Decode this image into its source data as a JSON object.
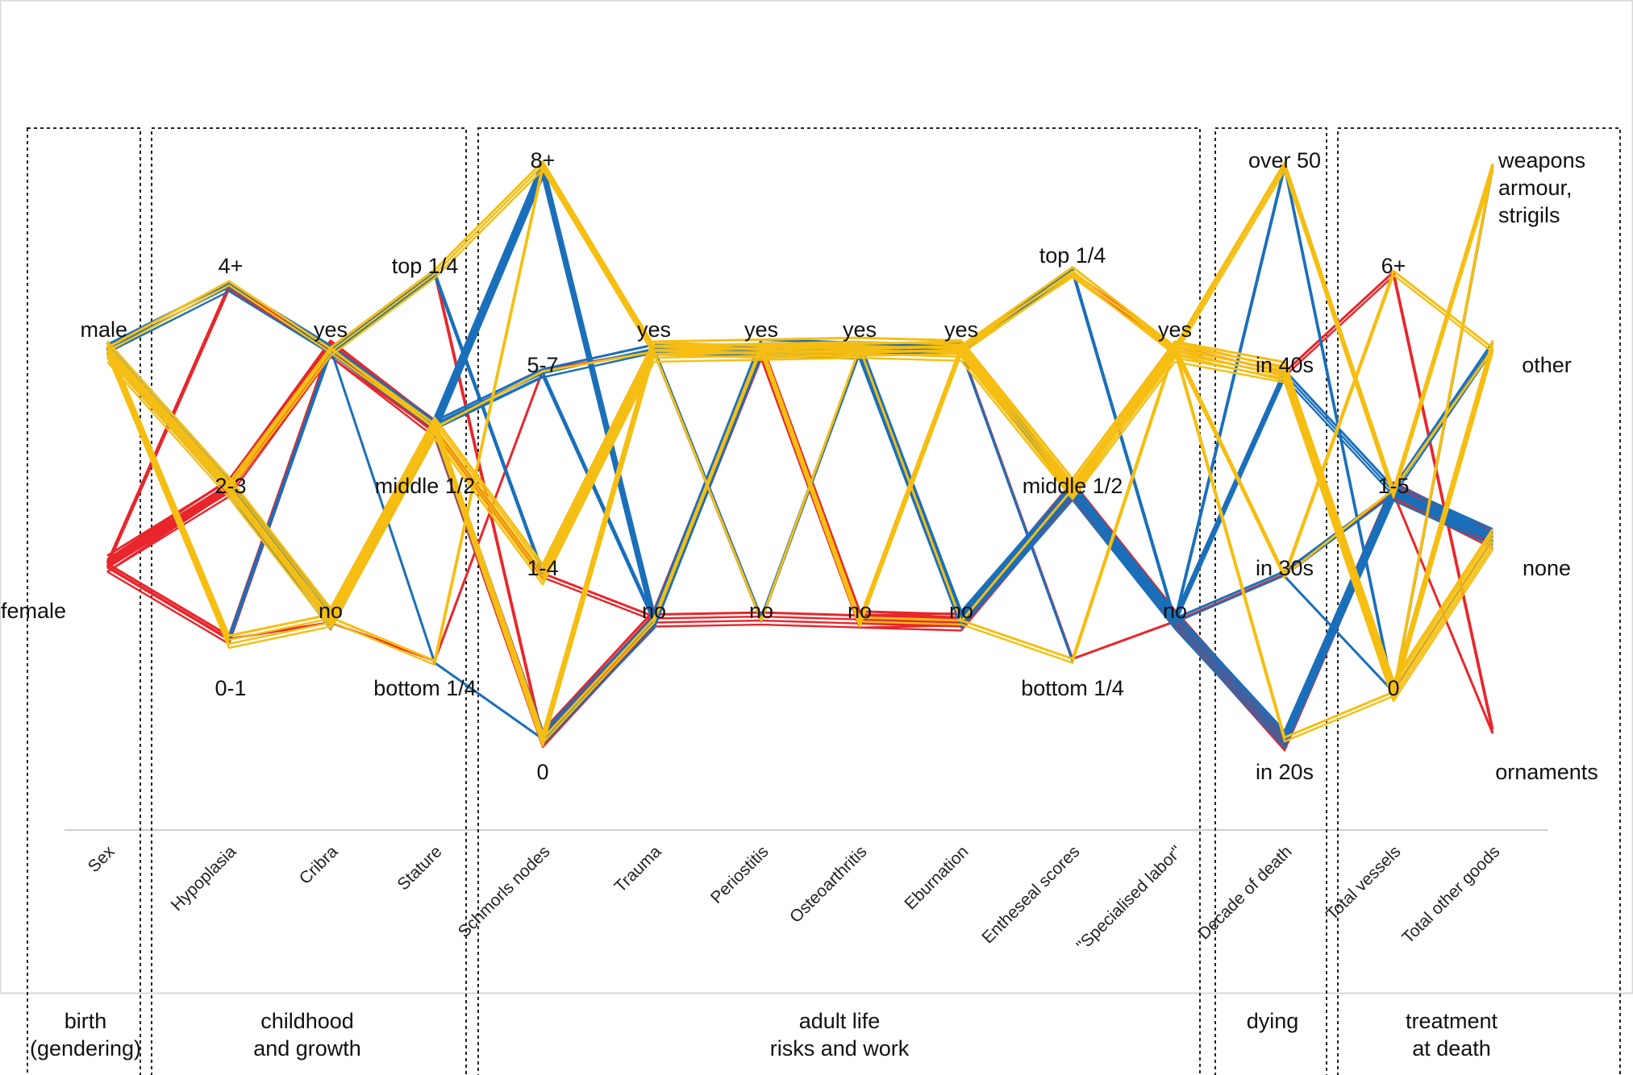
{
  "chart_data": {
    "type": "parallel-coordinates",
    "title": "",
    "groups": [
      {
        "line1": "birth",
        "line2": "(gendering)"
      },
      {
        "line1": "childhood",
        "line2": "and growth"
      },
      {
        "line1": "adult life",
        "line2": "risks and work"
      },
      {
        "line1": "dying",
        "line2": ""
      },
      {
        "line1": "treatment",
        "line2": "at death"
      }
    ],
    "axes": [
      {
        "name": "Sex",
        "levels": [
          "female",
          "male"
        ]
      },
      {
        "name": "Hypoplasia",
        "levels": [
          "0-1",
          "2-3",
          "4+"
        ]
      },
      {
        "name": "Cribra",
        "levels": [
          "no",
          "yes"
        ]
      },
      {
        "name": "Stature",
        "levels": [
          "bottom 1/4",
          "middle 1/2",
          "top 1/4"
        ]
      },
      {
        "name": "Schmorls nodes",
        "levels": [
          "0",
          "1-4",
          "5-7",
          "8+"
        ]
      },
      {
        "name": "Trauma",
        "levels": [
          "no",
          "yes"
        ]
      },
      {
        "name": "Periostitis",
        "levels": [
          "no",
          "yes"
        ]
      },
      {
        "name": "Osteoarthritis",
        "levels": [
          "no",
          "yes"
        ]
      },
      {
        "name": "Eburnation",
        "levels": [
          "no",
          "yes"
        ]
      },
      {
        "name": "Entheseal scores",
        "levels": [
          "bottom 1/4",
          "middle 1/2",
          "top 1/4"
        ]
      },
      {
        "name": "\"Specialised labor\"",
        "levels": [
          "no",
          "yes"
        ]
      },
      {
        "name": "Decade of death",
        "levels": [
          "in 20s",
          "in 30s",
          "in 40s",
          "over 50"
        ]
      },
      {
        "name": "Total vessels",
        "levels": [
          "0",
          "1-5",
          "6+"
        ]
      },
      {
        "name": "Total other goods",
        "levels": [
          "ornaments",
          "none",
          "other",
          "weapons armour, strigils"
        ]
      }
    ],
    "ornament_label_lines": [
      "weapons",
      "armour,",
      "strigils"
    ],
    "series": [
      {
        "color": "#e8262b",
        "weight": 5,
        "values": [
          0,
          1,
          1,
          1,
          0,
          0,
          1,
          0,
          0,
          1,
          0,
          0,
          1,
          1
        ]
      },
      {
        "color": "#e8262b",
        "weight": 4,
        "values": [
          0,
          1,
          1,
          1,
          0,
          0,
          0,
          0,
          0,
          1,
          0,
          0,
          1,
          1
        ]
      },
      {
        "color": "#e8262b",
        "weight": 3,
        "values": [
          0,
          0,
          1,
          1,
          0,
          0,
          1,
          0,
          0,
          1,
          0,
          0,
          1,
          1
        ]
      },
      {
        "color": "#e8262b",
        "weight": 2,
        "values": [
          0,
          2,
          1,
          2,
          0,
          1,
          1,
          1,
          1,
          2,
          1,
          2,
          2,
          0
        ]
      },
      {
        "color": "#e8262b",
        "weight": 1,
        "values": [
          0,
          0,
          0,
          0,
          2,
          1,
          1,
          1,
          1,
          0,
          0,
          1,
          1,
          0
        ]
      },
      {
        "color": "#e8262b",
        "weight": 2,
        "values": [
          0,
          1,
          1,
          1,
          1,
          0,
          1,
          0,
          0,
          1,
          0,
          0,
          1,
          1
        ]
      },
      {
        "color": "#1a6fba",
        "weight": 5,
        "values": [
          1,
          1,
          0,
          1,
          3,
          0,
          1,
          1,
          0,
          1,
          0,
          0,
          1,
          1
        ]
      },
      {
        "color": "#1a6fba",
        "weight": 4,
        "values": [
          1,
          1,
          0,
          1,
          0,
          0,
          1,
          1,
          0,
          1,
          0,
          0,
          1,
          1
        ]
      },
      {
        "color": "#1a6fba",
        "weight": 3,
        "values": [
          1,
          2,
          1,
          1,
          2,
          1,
          1,
          1,
          1,
          1,
          0,
          2,
          1,
          2
        ]
      },
      {
        "color": "#1a6fba",
        "weight": 2,
        "values": [
          1,
          0,
          1,
          2,
          1,
          1,
          0,
          1,
          1,
          2,
          0,
          3,
          0,
          3
        ]
      },
      {
        "color": "#1a6fba",
        "weight": 1,
        "values": [
          1,
          0,
          1,
          0,
          0,
          0,
          1,
          0,
          1,
          0,
          1,
          1,
          0,
          1
        ]
      },
      {
        "color": "#1a6fba",
        "weight": 2,
        "values": [
          1,
          1,
          0,
          1,
          2,
          0,
          1,
          1,
          0,
          1,
          0,
          1,
          1,
          1
        ]
      },
      {
        "color": "#f6be12",
        "weight": 6,
        "values": [
          1,
          1,
          0,
          1,
          1,
          1,
          1,
          1,
          1,
          1,
          1,
          2,
          0,
          1
        ]
      },
      {
        "color": "#f6be12",
        "weight": 4,
        "values": [
          1,
          0,
          0,
          1,
          0,
          1,
          1,
          1,
          1,
          1,
          1,
          2,
          0,
          2
        ]
      },
      {
        "color": "#f6be12",
        "weight": 3,
        "values": [
          1,
          1,
          1,
          2,
          3,
          1,
          1,
          0,
          1,
          2,
          1,
          3,
          1,
          3
        ]
      },
      {
        "color": "#f6be12",
        "weight": 2,
        "values": [
          1,
          1,
          0,
          0,
          3,
          1,
          1,
          0,
          0,
          0,
          1,
          1,
          2,
          2
        ]
      },
      {
        "color": "#f6be12",
        "weight": 2,
        "values": [
          1,
          2,
          1,
          1,
          0,
          0,
          1,
          1,
          1,
          2,
          1,
          0,
          0,
          3
        ]
      },
      {
        "color": "#f6be12",
        "weight": 1,
        "values": [
          1,
          1,
          1,
          1,
          2,
          1,
          0,
          1,
          0,
          1,
          1,
          1,
          1,
          2
        ]
      }
    ]
  }
}
